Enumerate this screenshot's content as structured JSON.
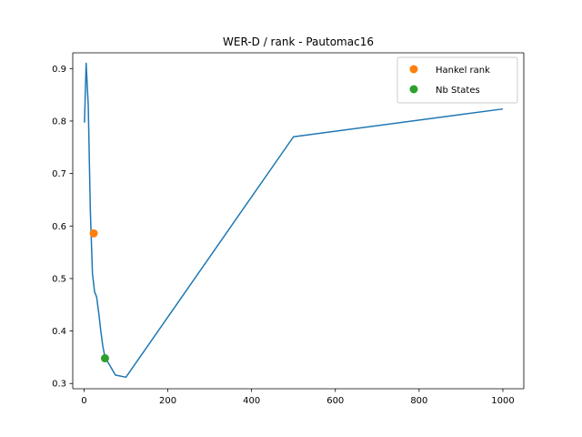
{
  "chart_data": {
    "type": "line",
    "title": "WER-D / rank - Pautomac16",
    "xlabel": "",
    "ylabel": "",
    "xlim": [
      -27,
      1050
    ],
    "ylim": [
      0.29,
      0.93
    ],
    "xticks": [
      0,
      200,
      400,
      600,
      800,
      1000
    ],
    "yticks": [
      0.3,
      0.4,
      0.5,
      0.6,
      0.7,
      0.8,
      0.9
    ],
    "xtick_labels": [
      "0",
      "200",
      "400",
      "600",
      "800",
      "1000"
    ],
    "ytick_labels": [
      "0.3",
      "0.4",
      "0.5",
      "0.6",
      "0.7",
      "0.8",
      "0.9"
    ],
    "grid": false,
    "legend_position": "top-right",
    "series": [
      {
        "name": "",
        "kind": "line",
        "color": "#1f77b4",
        "x": [
          1,
          5,
          10,
          15,
          20,
          25,
          30,
          35,
          40,
          45,
          50,
          75,
          100,
          500,
          1000
        ],
        "y": [
          0.797,
          0.91,
          0.83,
          0.63,
          0.51,
          0.475,
          0.465,
          0.435,
          0.4,
          0.37,
          0.35,
          0.316,
          0.312,
          0.77,
          0.823
        ]
      },
      {
        "name": "Hankel rank",
        "kind": "point",
        "color": "#ff7f0e",
        "x": [
          23
        ],
        "y": [
          0.586
        ]
      },
      {
        "name": "Nb States",
        "kind": "point",
        "color": "#2ca02c",
        "x": [
          50
        ],
        "y": [
          0.348
        ]
      }
    ]
  }
}
